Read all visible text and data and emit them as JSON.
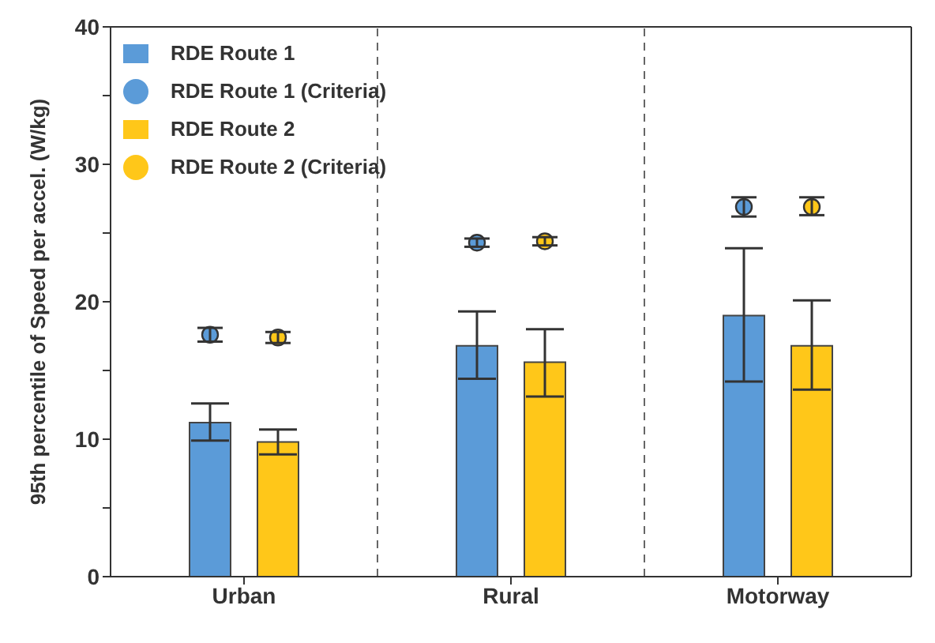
{
  "chart_data": {
    "type": "bar",
    "ylabel": "95th percentile of Speed per accel. (W/kg)",
    "categories": [
      "Urban",
      "Rural",
      "Motorway"
    ],
    "series": [
      {
        "name": "RDE Route 1",
        "color": "#5b9bd8",
        "values": [
          11.2,
          16.8,
          19.0
        ],
        "errors": [
          [
            9.9,
            12.6
          ],
          [
            14.4,
            19.3
          ],
          [
            14.2,
            23.9
          ]
        ]
      },
      {
        "name": "RDE Route 2",
        "color": "#ffc719",
        "values": [
          9.8,
          15.6,
          16.8
        ],
        "errors": [
          [
            8.9,
            10.7
          ],
          [
            13.1,
            18.0
          ],
          [
            13.6,
            20.1
          ]
        ]
      },
      {
        "name": "RDE Route 2 (Criteria)",
        "type": "scatter",
        "x": [
          "Urban",
          "Rural",
          "Motorway"
        ],
        "color": "#ffc719",
        "values": [
          17.4,
          24.4,
          26.9
        ],
        "errors": [
          [
            17.0,
            17.8
          ],
          [
            24.1,
            24.7
          ],
          [
            26.3,
            27.6
          ]
        ]
      },
      {
        "name": "RDE Route 1 (Criteria)",
        "type": "scatter",
        "x": [
          "Urban",
          "Rural",
          "Motorway"
        ],
        "color": "#5b9bd8",
        "values": [
          17.6,
          24.3,
          26.9
        ],
        "errors": [
          [
            17.1,
            18.1
          ],
          [
            24.0,
            24.6
          ],
          [
            26.2,
            27.6
          ]
        ]
      }
    ],
    "ylim": [
      0,
      40
    ],
    "yticks": [
      0,
      {
        "value": 5,
        "label": null
      },
      10,
      {
        "value": 15,
        "label": null
      },
      20,
      {
        "value": 25,
        "label": null
      },
      30,
      {
        "value": 35,
        "label": null
      },
      40
    ],
    "marker": "circle",
    "legend": "top left"
  }
}
